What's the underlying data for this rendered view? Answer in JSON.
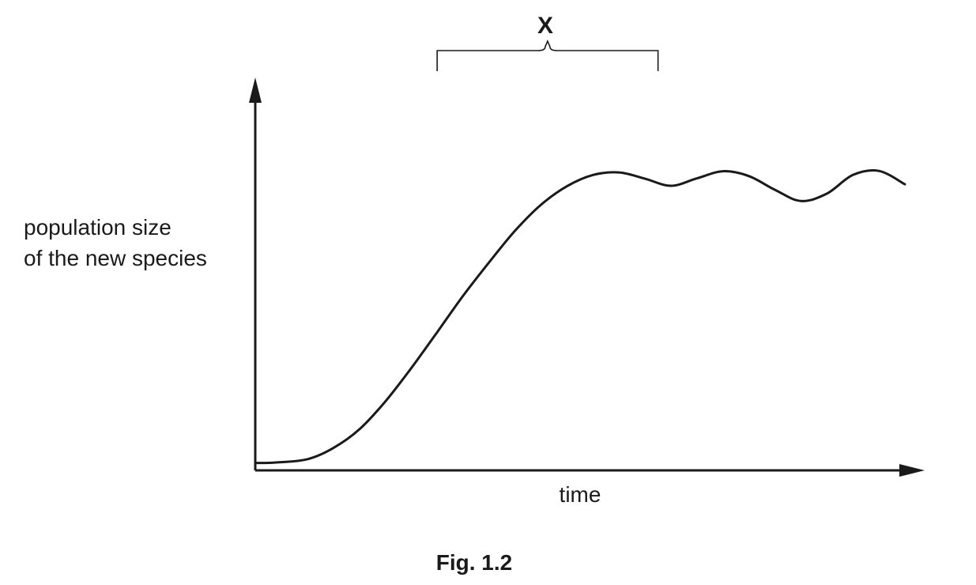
{
  "chart_data": {
    "type": "line",
    "title": "",
    "ylabel": [
      "population size",
      "of the new species"
    ],
    "xlabel": "time",
    "series": [
      {
        "x": [
          0,
          3,
          8,
          12,
          16,
          20,
          24,
          28,
          32,
          36,
          40,
          44,
          48,
          52,
          56,
          60,
          64,
          68,
          72,
          76,
          80,
          84,
          88,
          92,
          96,
          100
        ],
        "y": [
          2,
          2.1,
          3,
          6,
          11,
          18.5,
          27.5,
          37.2,
          47,
          56,
          64.5,
          71.5,
          76.5,
          79.5,
          80.2,
          78.5,
          76.6,
          78.6,
          80.5,
          79.2,
          75.5,
          72.5,
          74.5,
          79.5,
          80.6,
          77
        ]
      }
    ],
    "xlim": [
      0,
      100
    ],
    "ylim": [
      0,
      100
    ],
    "grid": false,
    "annotations": [
      {
        "label": "X",
        "type": "bracket",
        "x_start": 28,
        "x_end": 62
      }
    ],
    "caption": "Fig. 1.2"
  }
}
